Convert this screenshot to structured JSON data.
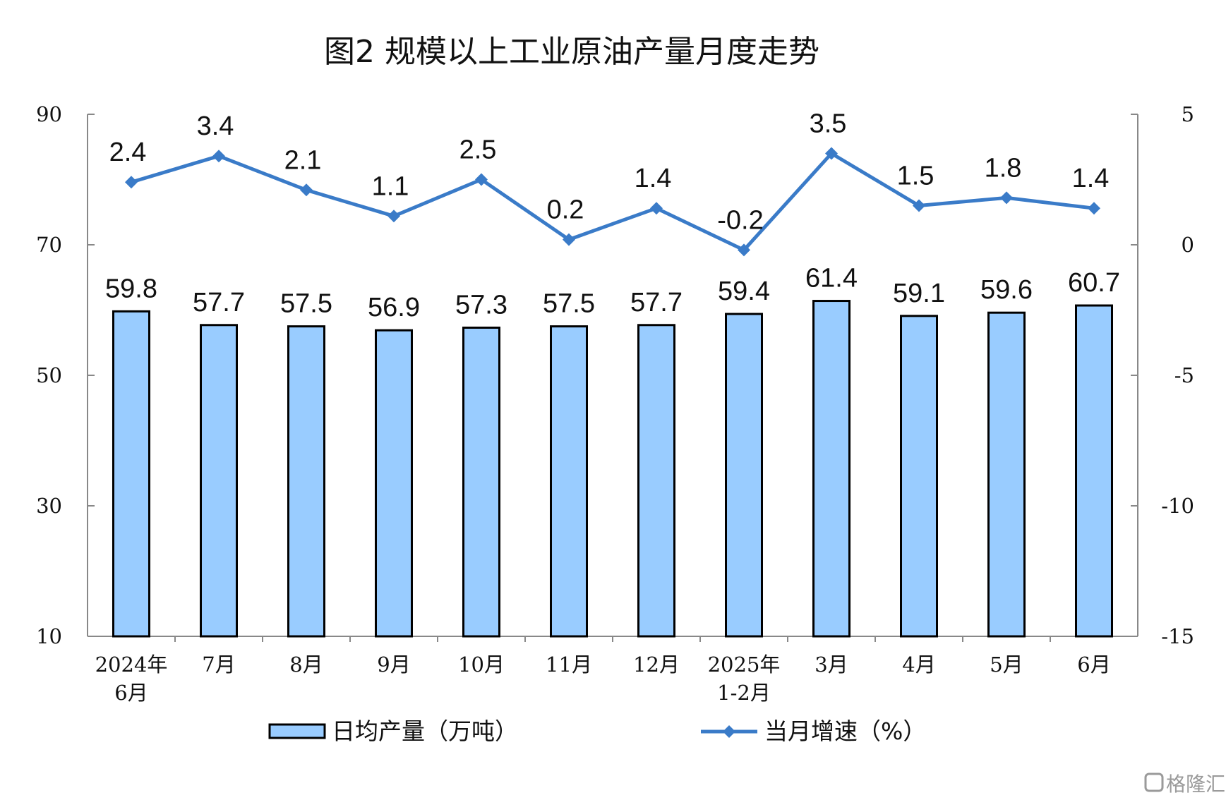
{
  "chart_data": {
    "type": "bar+line",
    "title": "图2  规模以上工业原油产量月度走势",
    "categories": [
      [
        "2024年",
        "6月"
      ],
      [
        "7月"
      ],
      [
        "8月"
      ],
      [
        "9月"
      ],
      [
        "10月"
      ],
      [
        "11月"
      ],
      [
        "12月"
      ],
      [
        "2025年",
        "1-2月"
      ],
      [
        "3月"
      ],
      [
        "4月"
      ],
      [
        "5月"
      ],
      [
        "6月"
      ]
    ],
    "series": [
      {
        "name": "日均产量（万吨）",
        "type": "bar",
        "axis": "left",
        "color": "#99CCFF",
        "values": [
          59.8,
          57.7,
          57.5,
          56.9,
          57.3,
          57.5,
          57.7,
          59.4,
          61.4,
          59.1,
          59.6,
          60.7
        ],
        "labels": [
          "59.8",
          "57.7",
          "57.5",
          "56.9",
          "57.3",
          "57.5",
          "57.7",
          "59.4",
          "61.4",
          "59.1",
          "59.6",
          "60.7"
        ]
      },
      {
        "name": "当月增速（%）",
        "type": "line",
        "axis": "right",
        "color": "#3A7BC8",
        "values": [
          2.4,
          3.4,
          2.1,
          1.1,
          2.5,
          0.2,
          1.4,
          -0.2,
          3.5,
          1.5,
          1.8,
          1.4
        ],
        "labels": [
          "2.4",
          "3.4",
          "2.1",
          "1.1",
          "2.5",
          "0.2",
          "1.4",
          "-0.2",
          "3.5",
          "1.5",
          "1.8",
          "1.4"
        ]
      }
    ],
    "y_left": {
      "min": 10,
      "max": 90,
      "ticks": [
        "90",
        "70",
        "50",
        "30",
        "10"
      ],
      "tick_values": [
        90,
        70,
        50,
        30,
        10
      ]
    },
    "y_right": {
      "min": -15,
      "max": 5,
      "ticks": [
        "5",
        "0",
        "-5",
        "-10",
        "-15"
      ],
      "tick_values": [
        5,
        0,
        -5,
        -10,
        -15
      ]
    },
    "legend": {
      "placement": "bottom",
      "bar_label": "日均产量（万吨）",
      "line_label": "当月增速（%）"
    },
    "grid": false
  },
  "watermark": {
    "text": "格隆汇"
  }
}
